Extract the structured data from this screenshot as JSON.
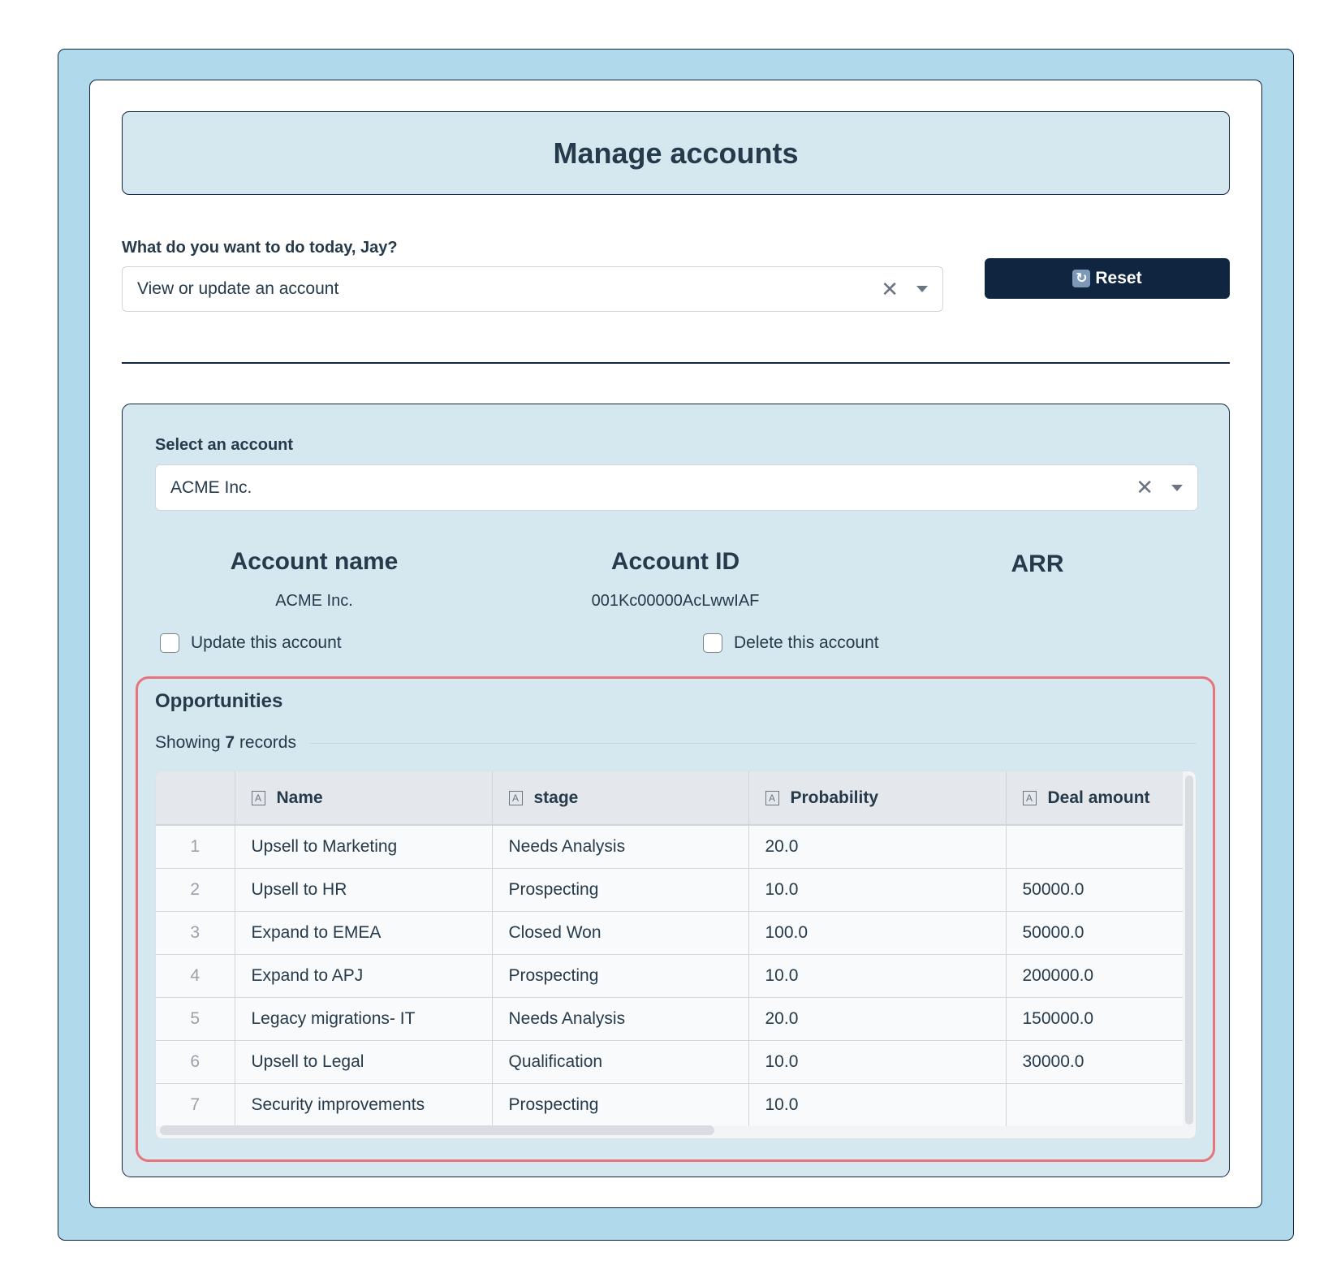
{
  "title": "Manage accounts",
  "action": {
    "label": "What do you want to do today, Jay?",
    "value": "View or update an account",
    "clear_icon": "close-icon",
    "caret_icon": "caret-down-icon"
  },
  "reset_button": {
    "label": "Reset",
    "icon": "refresh-icon",
    "icon_glyph": "↻"
  },
  "account_select": {
    "label": "Select an account",
    "value": "ACME Inc."
  },
  "account": {
    "name_header": "Account name",
    "name_value": "ACME Inc.",
    "id_header": "Account ID",
    "id_value": "001Kc00000AcLwwIAF",
    "arr_header": "ARR"
  },
  "checkboxes": {
    "update": "Update this account",
    "delete": "Delete this account"
  },
  "opportunities": {
    "title": "Opportunities",
    "showing_prefix": "Showing",
    "showing_count": "7",
    "showing_suffix": "records",
    "columns": [
      "Name",
      "stage",
      "Probability",
      "Deal amount"
    ],
    "column_type_icon": "A",
    "rows": [
      {
        "idx": "1",
        "name": "Upsell to Marketing",
        "stage": "Needs Analysis",
        "probability": "20.0",
        "amount": ""
      },
      {
        "idx": "2",
        "name": "Upsell to HR",
        "stage": "Prospecting",
        "probability": "10.0",
        "amount": "50000.0"
      },
      {
        "idx": "3",
        "name": "Expand to EMEA",
        "stage": "Closed Won",
        "probability": "100.0",
        "amount": "50000.0"
      },
      {
        "idx": "4",
        "name": "Expand to APJ",
        "stage": "Prospecting",
        "probability": "10.0",
        "amount": "200000.0"
      },
      {
        "idx": "5",
        "name": "Legacy migrations- IT",
        "stage": "Needs Analysis",
        "probability": "20.0",
        "amount": "150000.0"
      },
      {
        "idx": "6",
        "name": "Upsell to Legal",
        "stage": "Qualification",
        "probability": "10.0",
        "amount": "30000.0"
      },
      {
        "idx": "7",
        "name": "Security improvements",
        "stage": "Prospecting",
        "probability": "10.0",
        "amount": ""
      }
    ]
  },
  "colors": {
    "outer_bg": "#b0d9ec",
    "panel_bg": "#d5e8f0",
    "button_bg": "#0f2540",
    "highlight": "#e8737a"
  }
}
